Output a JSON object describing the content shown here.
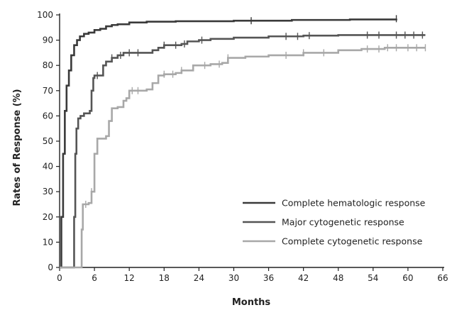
{
  "chart_data": {
    "type": "line",
    "title": "",
    "xlabel": "Months",
    "ylabel": "Rates of Response (%)",
    "xlim": [
      0,
      66
    ],
    "ylim": [
      0,
      100
    ],
    "x_ticks": [
      0,
      6,
      12,
      18,
      24,
      30,
      36,
      42,
      48,
      54,
      60,
      66
    ],
    "y_ticks": [
      0,
      10,
      20,
      30,
      40,
      50,
      60,
      70,
      80,
      90,
      100
    ],
    "grid": false,
    "legend_position": "bottom-right",
    "series": [
      {
        "name": "Complete hematologic response",
        "color": "#3a3a3a",
        "points": [
          [
            0,
            0
          ],
          [
            0.3,
            20
          ],
          [
            0.6,
            45
          ],
          [
            0.9,
            62
          ],
          [
            1.2,
            72
          ],
          [
            1.6,
            78
          ],
          [
            2,
            84
          ],
          [
            2.5,
            88
          ],
          [
            3,
            90
          ],
          [
            3.5,
            91.5
          ],
          [
            4.2,
            92.5
          ],
          [
            5,
            93
          ],
          [
            6,
            94
          ],
          [
            7,
            94.5
          ],
          [
            8,
            95.5
          ],
          [
            9,
            96
          ],
          [
            10,
            96.3
          ],
          [
            12,
            97
          ],
          [
            15,
            97.3
          ],
          [
            20,
            97.5
          ],
          [
            30,
            97.7
          ],
          [
            40,
            98
          ],
          [
            50,
            98.2
          ],
          [
            58,
            98.5
          ]
        ],
        "censor_marks": [
          33,
          58
        ]
      },
      {
        "name": "Major cytogenetic response",
        "color": "#555555",
        "points": [
          [
            0,
            0
          ],
          [
            2.3,
            0
          ],
          [
            2.5,
            20
          ],
          [
            2.7,
            45
          ],
          [
            2.9,
            55
          ],
          [
            3.2,
            59
          ],
          [
            3.6,
            60
          ],
          [
            4.2,
            61
          ],
          [
            5.2,
            62
          ],
          [
            5.5,
            70
          ],
          [
            5.8,
            75
          ],
          [
            6,
            76
          ],
          [
            7.2,
            76
          ],
          [
            7.5,
            80
          ],
          [
            8,
            81.5
          ],
          [
            9,
            83
          ],
          [
            10,
            84
          ],
          [
            11,
            85
          ],
          [
            15,
            85
          ],
          [
            16,
            86
          ],
          [
            17,
            87
          ],
          [
            18,
            88
          ],
          [
            19,
            88
          ],
          [
            21,
            88.5
          ],
          [
            22,
            89.5
          ],
          [
            24,
            90
          ],
          [
            26,
            90.5
          ],
          [
            30,
            91
          ],
          [
            36,
            91.5
          ],
          [
            42,
            91.8
          ],
          [
            48,
            92
          ],
          [
            56,
            92
          ],
          [
            63,
            92
          ]
        ],
        "censor_marks": [
          6.5,
          9,
          10.5,
          12,
          13.5,
          18,
          20,
          21.5,
          24.5,
          39,
          41,
          43,
          53,
          55,
          58,
          59.5,
          61,
          62.5
        ]
      },
      {
        "name": "Complete cytogenetic response",
        "color": "#a8a8a8",
        "points": [
          [
            0,
            0
          ],
          [
            3.6,
            0
          ],
          [
            3.8,
            15
          ],
          [
            4,
            25
          ],
          [
            5,
            25.5
          ],
          [
            5.5,
            30
          ],
          [
            6,
            45
          ],
          [
            6.5,
            51
          ],
          [
            8,
            52
          ],
          [
            8.5,
            58
          ],
          [
            9,
            63
          ],
          [
            10,
            63.5
          ],
          [
            11,
            66
          ],
          [
            11.5,
            67
          ],
          [
            12,
            70
          ],
          [
            15,
            70.5
          ],
          [
            16,
            73
          ],
          [
            17,
            76
          ],
          [
            18,
            76.5
          ],
          [
            20,
            77
          ],
          [
            21,
            78
          ],
          [
            23,
            80
          ],
          [
            26,
            80.5
          ],
          [
            28,
            81
          ],
          [
            29,
            83
          ],
          [
            32,
            83.5
          ],
          [
            36,
            84
          ],
          [
            42,
            85
          ],
          [
            48,
            86
          ],
          [
            52,
            86.5
          ],
          [
            56,
            87
          ],
          [
            63,
            87
          ]
        ],
        "censor_marks": [
          4.5,
          5.5,
          12.5,
          13.5,
          18,
          19.5,
          21,
          25,
          27.5,
          29,
          39,
          42,
          45.5,
          53,
          55,
          56.5,
          58,
          60,
          61.5,
          63
        ]
      }
    ]
  }
}
